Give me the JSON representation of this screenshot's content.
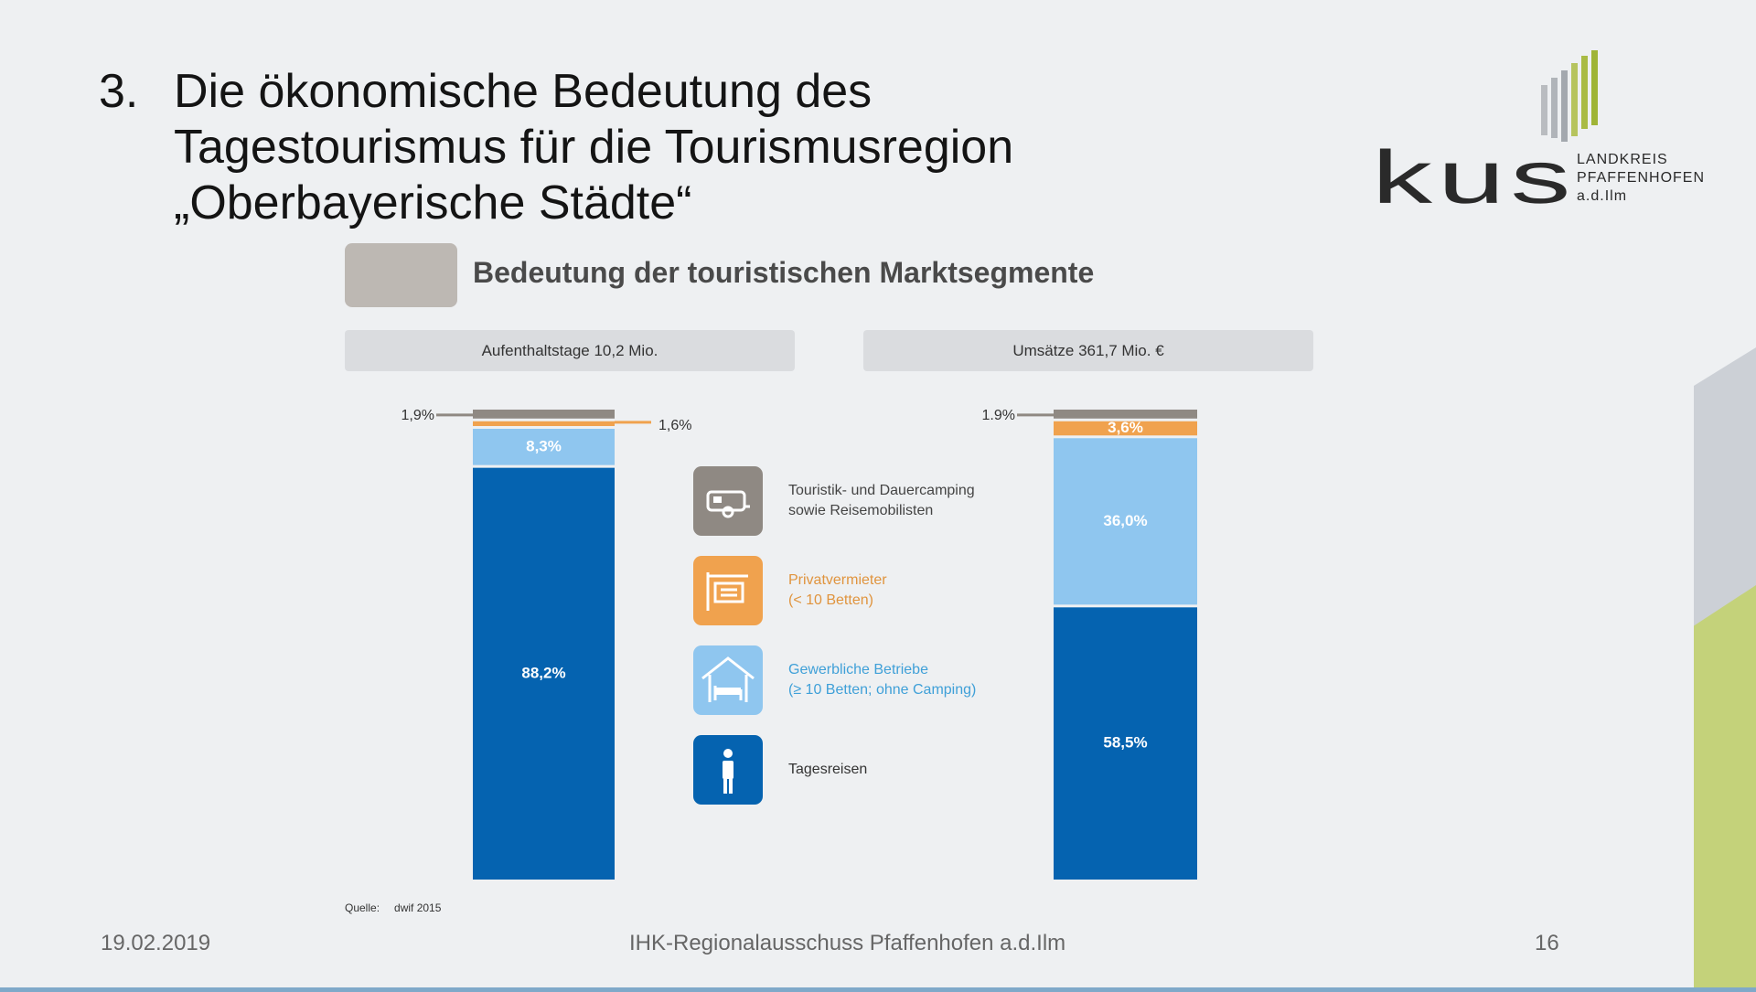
{
  "slide": {
    "number": "3.",
    "title_lines": [
      "Die ökonomische Bedeutung des",
      "Tagestourismus für die Tourismusregion",
      "„Oberbayerische Städte“"
    ],
    "section_title": "Bedeutung der touristischen Marktsegmente"
  },
  "logo": {
    "word": "kus",
    "lines": [
      "LANDKREIS",
      "PFAFFENHOFEN",
      "a.d.Ilm"
    ]
  },
  "colors": {
    "camping": "#8f8983",
    "private": "#f0a24e",
    "commercial": "#8fc6ef",
    "day_trips": "#0563b0"
  },
  "legend": [
    {
      "key": "camping",
      "icon": "caravan-icon",
      "line1": "Touristik- und Dauercamping",
      "line2": "sowie Reisemobilisten",
      "text_color": "#444444"
    },
    {
      "key": "private",
      "icon": "bed-sign-icon",
      "line1": "Privatvermieter",
      "line2": "(< 10 Betten)",
      "text_color": "#e0943e"
    },
    {
      "key": "commercial",
      "icon": "house-bed-icon",
      "line1": "Gewerbliche Betriebe",
      "line2": "(≥ 10 Betten; ohne Camping)",
      "text_color": "#3fa0d8"
    },
    {
      "key": "day_trips",
      "icon": "person-icon",
      "line1": "Tagesreisen",
      "line2": "",
      "text_color": "#333333"
    }
  ],
  "chart_data": [
    {
      "type": "bar",
      "stacked": true,
      "title": "Aufenthaltstage 10,2 Mio.",
      "unit": "%",
      "ylim": [
        0,
        100
      ],
      "segments": [
        {
          "key": "day_trips",
          "value": 88.2,
          "label": "88,2%"
        },
        {
          "key": "commercial",
          "value": 8.3,
          "label": "8,3%"
        },
        {
          "key": "private",
          "value": 1.6,
          "label": "1,6%"
        },
        {
          "key": "camping",
          "value": 1.9,
          "label": "1,9%"
        }
      ]
    },
    {
      "type": "bar",
      "stacked": true,
      "title": "Umsätze 361,7 Mio. €",
      "unit": "%",
      "ylim": [
        0,
        100
      ],
      "segments": [
        {
          "key": "day_trips",
          "value": 58.5,
          "label": "58,5%"
        },
        {
          "key": "commercial",
          "value": 36.0,
          "label": "36,0%"
        },
        {
          "key": "private",
          "value": 3.6,
          "label": "3,6%"
        },
        {
          "key": "camping",
          "value": 1.9,
          "label": "1.9%"
        }
      ]
    }
  ],
  "source": {
    "label": "Quelle:",
    "value": "dwif 2015"
  },
  "footer": {
    "date": "19.02.2019",
    "center": "IHK-Regionalausschuss Pfaffenhofen a.d.Ilm",
    "page": "16"
  }
}
